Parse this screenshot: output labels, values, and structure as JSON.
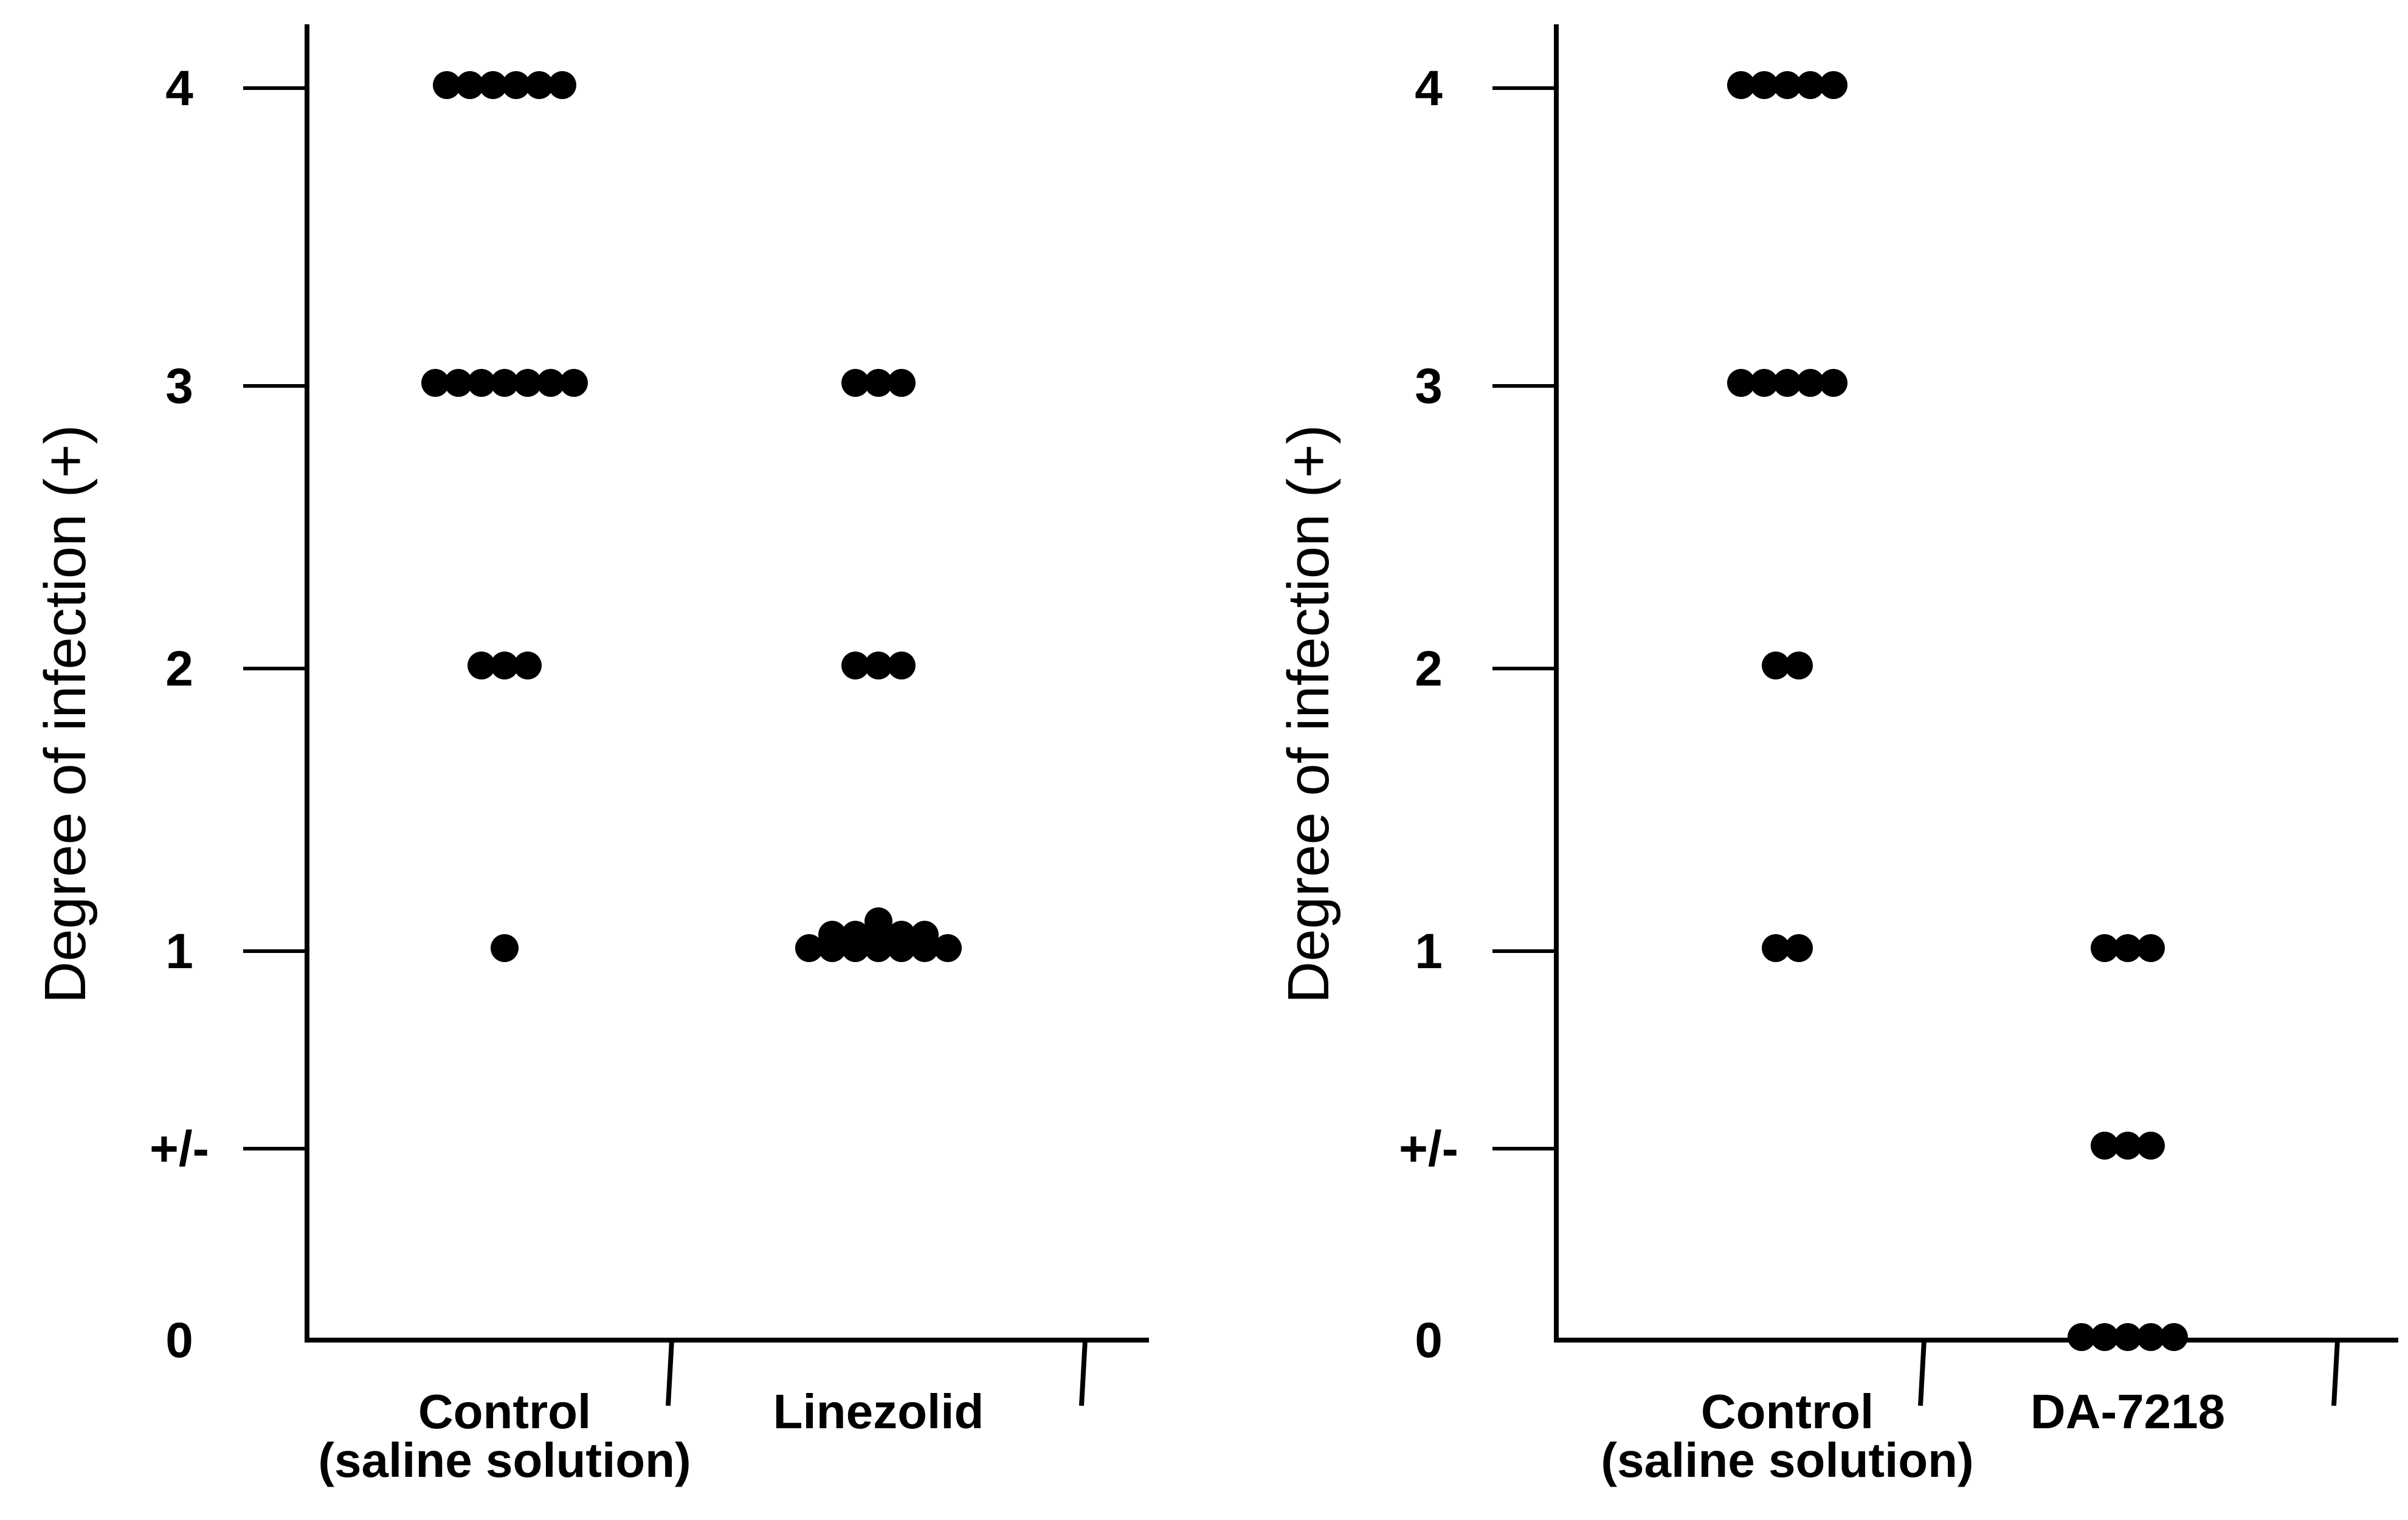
{
  "chart_data": [
    {
      "type": "scatter",
      "title": "",
      "ylabel": "Degree of infection (+)",
      "xlabel": "",
      "y_tick_labels": [
        "0",
        "+/-",
        "1",
        "2",
        "3",
        "4"
      ],
      "y_tick_values": [
        0,
        0.5,
        1,
        2,
        3,
        4
      ],
      "ylim": [
        0,
        4.2
      ],
      "grid": false,
      "categories": [
        {
          "label_lines": [
            "Control",
            "(saline solution)"
          ]
        },
        {
          "label_lines": [
            "Linezolid"
          ]
        }
      ],
      "series": [
        {
          "category": 0,
          "values": [
            4,
            4,
            4,
            4,
            4,
            4,
            3,
            3,
            3,
            3,
            3,
            3,
            3,
            2,
            2,
            2,
            1
          ]
        },
        {
          "category": 1,
          "values": [
            3,
            3,
            3,
            2,
            2,
            2,
            1,
            1,
            1,
            1,
            1,
            1,
            1,
            1,
            1,
            1,
            1,
            1,
            1
          ]
        }
      ]
    },
    {
      "type": "scatter",
      "title": "",
      "ylabel": "Degree of infection (+)",
      "xlabel": "",
      "y_tick_labels": [
        "0",
        "+/-",
        "1",
        "2",
        "3",
        "4"
      ],
      "y_tick_values": [
        0,
        0.5,
        1,
        2,
        3,
        4
      ],
      "ylim": [
        0,
        4.2
      ],
      "grid": false,
      "categories": [
        {
          "label_lines": [
            "Control",
            "(saline solution)"
          ]
        },
        {
          "label_lines": [
            "DA-7218"
          ]
        }
      ],
      "series": [
        {
          "category": 0,
          "values": [
            4,
            4,
            4,
            4,
            4,
            3,
            3,
            3,
            3,
            3,
            2,
            2,
            1,
            1
          ]
        },
        {
          "category": 1,
          "values": [
            1,
            1,
            1,
            0.5,
            0.5,
            0.5,
            0,
            0,
            0,
            0,
            0
          ]
        }
      ]
    }
  ]
}
